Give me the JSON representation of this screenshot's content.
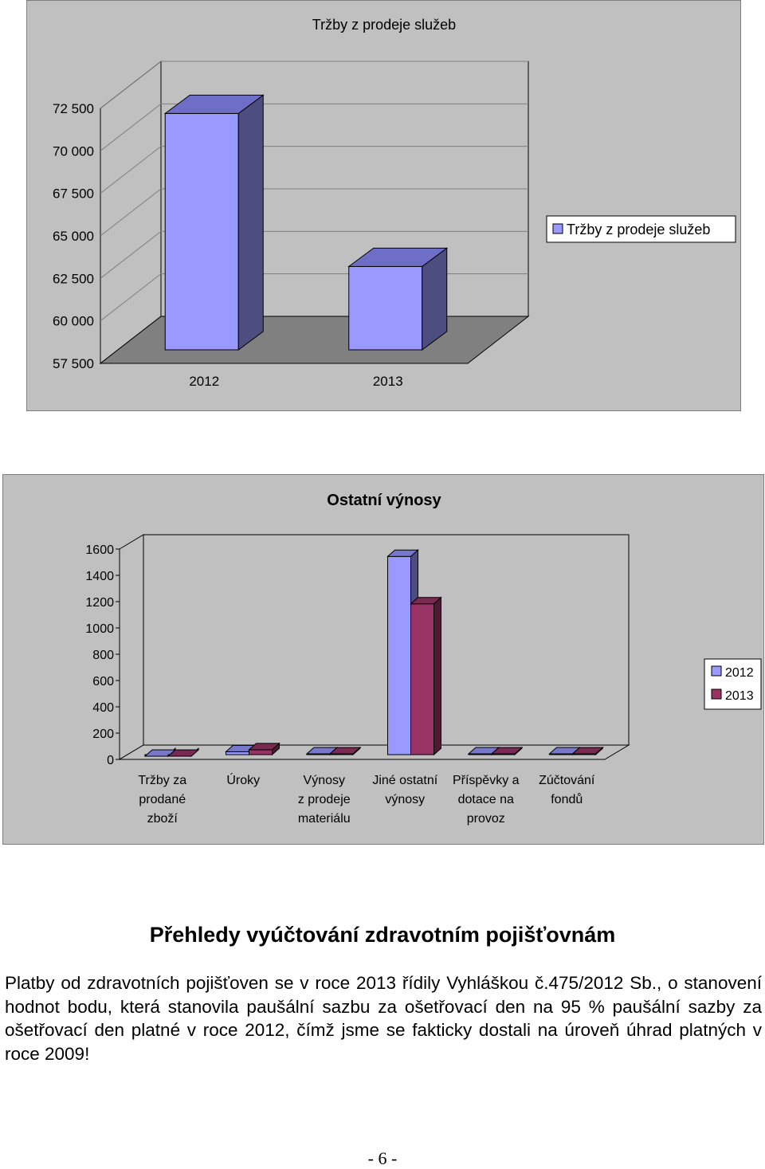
{
  "chart_data": [
    {
      "type": "bar",
      "title": "Tržby z prodeje služeb",
      "categories": [
        "2012",
        "2013"
      ],
      "series": [
        {
          "name": "Tržby z prodeje služeb",
          "values": [
            72200,
            63200
          ]
        }
      ],
      "y_ticks": [
        "57 500",
        "60 000",
        "62 500",
        "65 000",
        "67 500",
        "70 000",
        "72 500"
      ],
      "ylim": [
        57500,
        72500
      ],
      "xlabel": "",
      "ylabel": "",
      "legend": "right",
      "grid": true,
      "style": "3d",
      "colors": {
        "series": "#9999ff",
        "side": "#4d4d80",
        "top": "#6e6ec8",
        "floor": "#808080",
        "wall": "#c0c0c0"
      }
    },
    {
      "type": "bar",
      "title": "Ostatní výnosy",
      "categories": [
        [
          "Tržby za",
          "prodané",
          "zboží"
        ],
        [
          "Úroky"
        ],
        [
          "Výnosy",
          "z prodeje",
          "materiálu"
        ],
        [
          "Jiné ostatní",
          "výnosy"
        ],
        [
          "Příspěvky a",
          "dotace na",
          "provoz"
        ],
        [
          "Zúčtování",
          "fondů"
        ]
      ],
      "series": [
        {
          "name": "2012",
          "values": [
            40,
            95,
            0,
            1580,
            0,
            0
          ]
        },
        {
          "name": "2013",
          "values": [
            30,
            110,
            0,
            1220,
            0,
            0
          ]
        }
      ],
      "y_ticks": [
        "0",
        "200",
        "400",
        "600",
        "800",
        "1000",
        "1200",
        "1400",
        "1600"
      ],
      "ylim": [
        0,
        1600
      ],
      "xlabel": "",
      "ylabel": "",
      "legend": "right",
      "grid": false,
      "style": "3d",
      "colors": {
        "2012": "#9999ff",
        "2013": "#993366",
        "wall": "#c0c0c0"
      }
    }
  ],
  "document": {
    "heading": "Přehledy vyúčtování zdravotním pojišťovnám",
    "paragraph": "Platby od zdravotních pojišťoven se v roce 2013 řídily Vyhláškou č.475/2012 Sb., o stanovení hodnot bodu, která stanovila paušální sazbu za ošetřovací den na 95 % paušální sazby za ošetřovací den platné v roce 2012, čímž jsme se fakticky dostali na úroveň úhrad platných v roce 2009!",
    "page_number": "- 6 -"
  }
}
